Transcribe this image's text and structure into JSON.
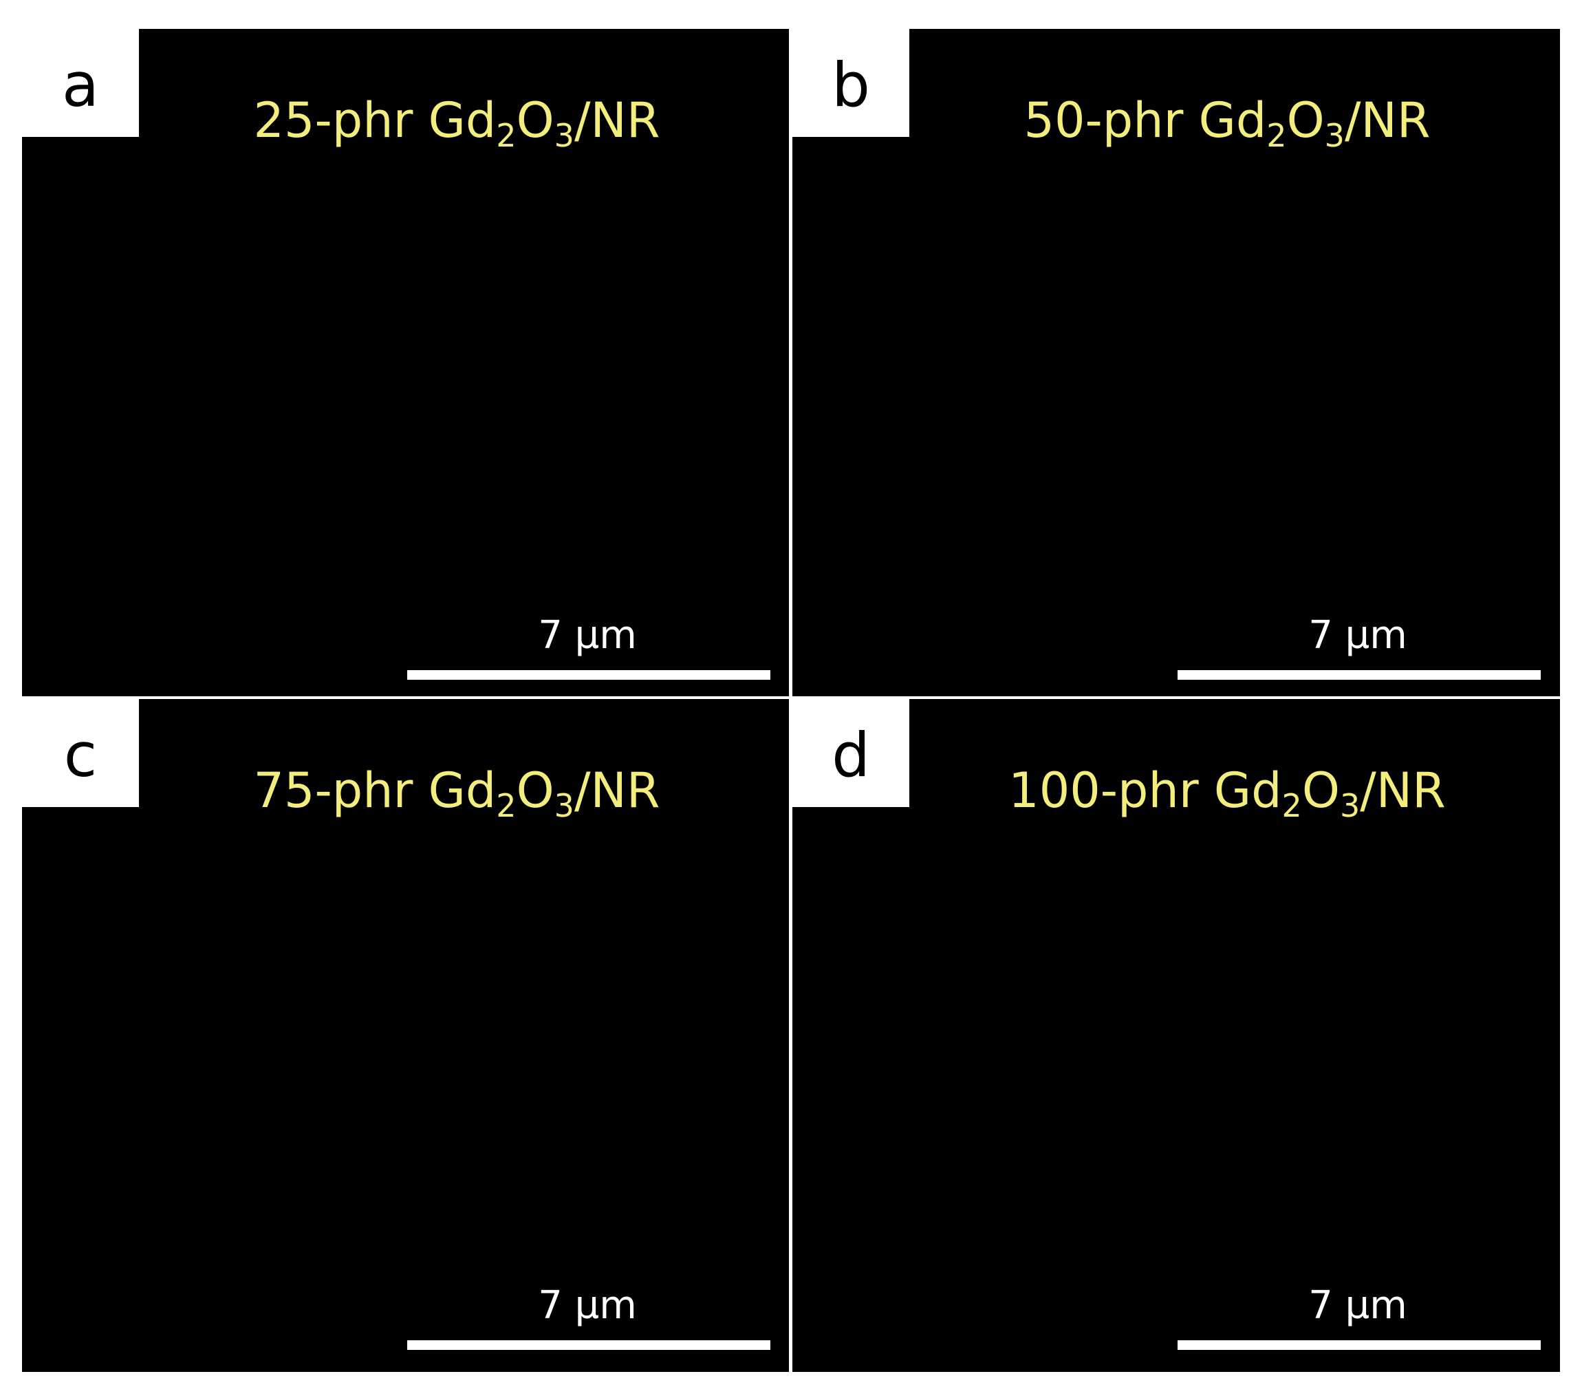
{
  "panels": [
    {
      "letter": "a",
      "title": {
        "prefix": "25-phr Gd",
        "sub1": "2",
        "mid": "O",
        "sub2": "3",
        "suffix": "/NR"
      },
      "scale_bar": "7 µm"
    },
    {
      "letter": "b",
      "title": {
        "prefix": "50-phr Gd",
        "sub1": "2",
        "mid": "O",
        "sub2": "3",
        "suffix": "/NR"
      },
      "scale_bar": "7 µm"
    },
    {
      "letter": "c",
      "title": {
        "prefix": "75-phr Gd",
        "sub1": "2",
        "mid": "O",
        "sub2": "3",
        "suffix": "/NR"
      },
      "scale_bar": "7 µm"
    },
    {
      "letter": "d",
      "title": {
        "prefix": "100-phr Gd",
        "sub1": "2",
        "mid": "O",
        "sub2": "3",
        "suffix": "/NR"
      },
      "scale_bar": "7 µm"
    }
  ]
}
